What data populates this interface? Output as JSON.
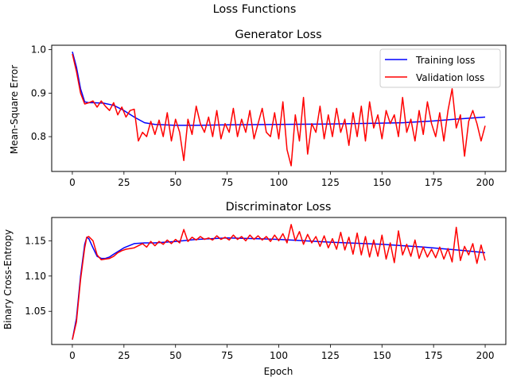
{
  "figure": {
    "suptitle": "Loss Functions"
  },
  "chart_data": [
    {
      "type": "line",
      "title": "Generator Loss",
      "xlabel": "",
      "ylabel": "Mean-Square Error",
      "xlim": [
        -10,
        210
      ],
      "ylim": [
        0.72,
        1.01
      ],
      "xticks": [
        0,
        25,
        50,
        75,
        100,
        125,
        150,
        175,
        200
      ],
      "yticks": [
        0.8,
        0.9,
        1.0
      ],
      "ytick_labels": [
        "0.8",
        "0.9",
        "1.0"
      ],
      "legend": {
        "placement": "top-right",
        "entries": [
          "Training loss",
          "Validation loss"
        ]
      },
      "series": [
        {
          "name": "Training loss",
          "color": "#0000ff",
          "x": [
            0,
            2,
            4,
            6,
            8,
            10,
            15,
            20,
            25,
            30,
            35,
            40,
            50,
            60,
            75,
            100,
            125,
            150,
            160,
            175,
            185,
            200
          ],
          "values": [
            0.995,
            0.96,
            0.91,
            0.88,
            0.878,
            0.878,
            0.877,
            0.872,
            0.86,
            0.845,
            0.832,
            0.828,
            0.826,
            0.826,
            0.827,
            0.828,
            0.829,
            0.831,
            0.832,
            0.836,
            0.84,
            0.845
          ]
        },
        {
          "name": "Validation loss",
          "color": "#ff0000",
          "x": [
            0,
            2,
            4,
            6,
            8,
            10,
            12,
            14,
            16,
            18,
            20,
            22,
            24,
            26,
            28,
            30,
            32,
            34,
            36,
            38,
            40,
            42,
            44,
            46,
            48,
            50,
            52,
            54,
            56,
            58,
            60,
            62,
            64,
            66,
            68,
            70,
            72,
            74,
            76,
            78,
            80,
            82,
            84,
            86,
            88,
            90,
            92,
            94,
            96,
            98,
            100,
            102,
            104,
            106,
            108,
            110,
            112,
            114,
            116,
            118,
            120,
            122,
            124,
            126,
            128,
            130,
            132,
            134,
            136,
            138,
            140,
            142,
            144,
            146,
            148,
            150,
            152,
            154,
            156,
            158,
            160,
            162,
            164,
            166,
            168,
            170,
            172,
            174,
            176,
            178,
            180,
            182,
            184,
            186,
            188,
            190,
            192,
            194,
            196,
            198,
            200
          ],
          "values": [
            0.99,
            0.95,
            0.9,
            0.875,
            0.878,
            0.882,
            0.868,
            0.882,
            0.87,
            0.86,
            0.878,
            0.85,
            0.868,
            0.845,
            0.86,
            0.863,
            0.79,
            0.81,
            0.8,
            0.835,
            0.805,
            0.838,
            0.8,
            0.855,
            0.79,
            0.84,
            0.81,
            0.745,
            0.84,
            0.805,
            0.87,
            0.83,
            0.81,
            0.845,
            0.8,
            0.86,
            0.795,
            0.83,
            0.81,
            0.865,
            0.8,
            0.84,
            0.81,
            0.86,
            0.795,
            0.83,
            0.865,
            0.81,
            0.8,
            0.855,
            0.795,
            0.88,
            0.77,
            0.733,
            0.85,
            0.79,
            0.89,
            0.76,
            0.83,
            0.81,
            0.87,
            0.795,
            0.85,
            0.8,
            0.865,
            0.81,
            0.84,
            0.78,
            0.855,
            0.8,
            0.87,
            0.79,
            0.88,
            0.82,
            0.85,
            0.795,
            0.86,
            0.83,
            0.85,
            0.8,
            0.89,
            0.81,
            0.84,
            0.79,
            0.86,
            0.805,
            0.88,
            0.83,
            0.8,
            0.855,
            0.79,
            0.86,
            0.91,
            0.82,
            0.85,
            0.755,
            0.835,
            0.86,
            0.83,
            0.79,
            0.825
          ]
        }
      ]
    },
    {
      "type": "line",
      "title": "Discriminator Loss",
      "xlabel": "Epoch",
      "ylabel": "Binary Cross-Entropy",
      "xlim": [
        -10,
        210
      ],
      "ylim": [
        1.003,
        1.183
      ],
      "xticks": [
        0,
        25,
        50,
        75,
        100,
        125,
        150,
        175,
        200
      ],
      "yticks": [
        1.05,
        1.1,
        1.15
      ],
      "ytick_labels": [
        "1.05",
        "1.10",
        "1.15"
      ],
      "series": [
        {
          "name": "Training loss",
          "color": "#0000ff",
          "x": [
            0,
            2,
            4,
            6,
            7,
            8,
            10,
            12,
            14,
            16,
            18,
            20,
            25,
            30,
            35,
            40,
            50,
            60,
            75,
            90,
            100,
            125,
            150,
            170,
            190,
            200
          ],
          "values": [
            1.01,
            1.04,
            1.1,
            1.145,
            1.155,
            1.153,
            1.14,
            1.128,
            1.125,
            1.125,
            1.127,
            1.131,
            1.14,
            1.146,
            1.147,
            1.147,
            1.149,
            1.152,
            1.154,
            1.153,
            1.152,
            1.148,
            1.145,
            1.141,
            1.136,
            1.133
          ]
        },
        {
          "name": "Validation loss",
          "color": "#ff0000",
          "x": [
            0,
            2,
            4,
            6,
            7,
            8,
            10,
            12,
            14,
            16,
            18,
            20,
            22,
            24,
            26,
            28,
            30,
            32,
            34,
            36,
            38,
            40,
            42,
            44,
            46,
            48,
            50,
            52,
            54,
            56,
            58,
            60,
            62,
            64,
            66,
            68,
            70,
            72,
            74,
            76,
            78,
            80,
            82,
            84,
            86,
            88,
            90,
            92,
            94,
            96,
            98,
            100,
            102,
            104,
            106,
            108,
            110,
            112,
            114,
            116,
            118,
            120,
            122,
            124,
            126,
            128,
            130,
            132,
            134,
            136,
            138,
            140,
            142,
            144,
            146,
            148,
            150,
            152,
            154,
            156,
            158,
            160,
            162,
            164,
            166,
            168,
            170,
            172,
            174,
            176,
            178,
            180,
            182,
            184,
            186,
            188,
            190,
            192,
            194,
            196,
            198,
            200
          ],
          "values": [
            1.01,
            1.035,
            1.095,
            1.14,
            1.155,
            1.156,
            1.15,
            1.13,
            1.123,
            1.124,
            1.125,
            1.128,
            1.133,
            1.136,
            1.138,
            1.139,
            1.14,
            1.143,
            1.146,
            1.141,
            1.149,
            1.143,
            1.149,
            1.145,
            1.151,
            1.146,
            1.152,
            1.147,
            1.166,
            1.149,
            1.155,
            1.151,
            1.156,
            1.152,
            1.154,
            1.151,
            1.157,
            1.152,
            1.155,
            1.151,
            1.158,
            1.152,
            1.156,
            1.15,
            1.158,
            1.152,
            1.157,
            1.151,
            1.156,
            1.149,
            1.158,
            1.15,
            1.16,
            1.147,
            1.173,
            1.15,
            1.163,
            1.145,
            1.159,
            1.147,
            1.156,
            1.142,
            1.157,
            1.14,
            1.153,
            1.138,
            1.162,
            1.137,
            1.155,
            1.131,
            1.161,
            1.13,
            1.156,
            1.127,
            1.151,
            1.128,
            1.158,
            1.124,
            1.147,
            1.119,
            1.164,
            1.13,
            1.145,
            1.128,
            1.151,
            1.125,
            1.141,
            1.127,
            1.138,
            1.126,
            1.141,
            1.124,
            1.139,
            1.12,
            1.169,
            1.122,
            1.142,
            1.13,
            1.146,
            1.118,
            1.144,
            1.122
          ]
        }
      ]
    }
  ]
}
